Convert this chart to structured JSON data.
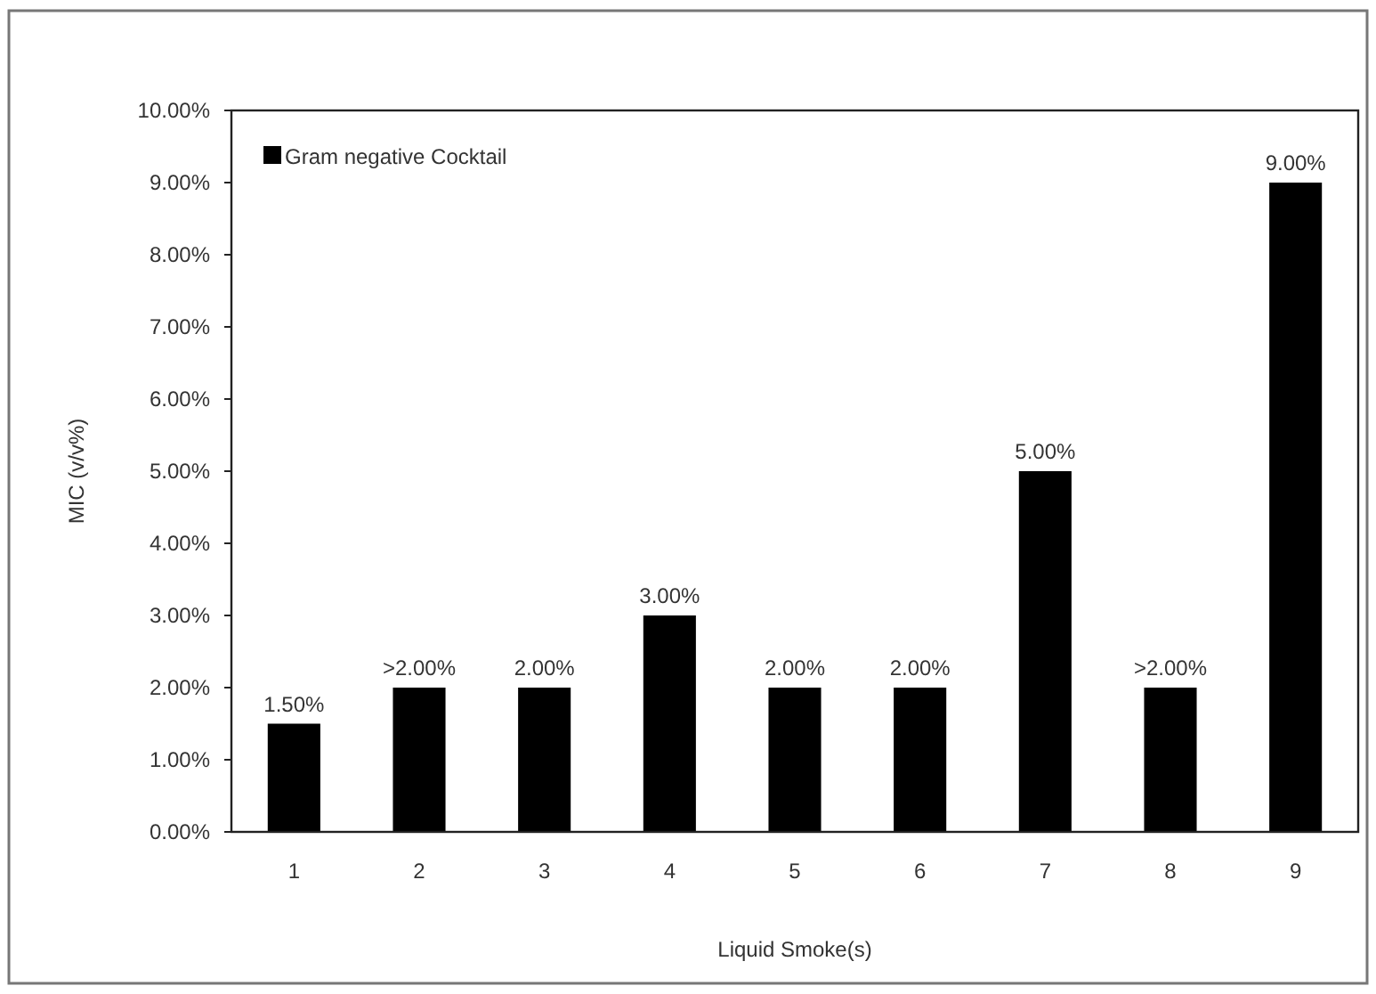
{
  "chart_data": {
    "type": "bar",
    "xlabel": "Liquid Smoke(s)",
    "ylabel": "MIC (v/v%)",
    "categories": [
      "1",
      "2",
      "3",
      "4",
      "5",
      "6",
      "7",
      "8",
      "9"
    ],
    "series": [
      {
        "name": "Gram negative Cocktail",
        "color": "#000000",
        "values": [
          1.5,
          2,
          2,
          3,
          2,
          2,
          5,
          2,
          9
        ],
        "value_labels": [
          "1.50%",
          ">2.00%",
          "2.00%",
          "3.00%",
          "2.00%",
          "2.00%",
          "5.00%",
          ">2.00%",
          "9.00%"
        ]
      }
    ],
    "ylim": [
      0,
      10
    ],
    "yticks": [
      {
        "value": 0,
        "label": "0.00%"
      },
      {
        "value": 1,
        "label": "1.00%"
      },
      {
        "value": 2,
        "label": "2.00%"
      },
      {
        "value": 3,
        "label": "3.00%"
      },
      {
        "value": 4,
        "label": "4.00%"
      },
      {
        "value": 5,
        "label": "5.00%"
      },
      {
        "value": 6,
        "label": "6.00%"
      },
      {
        "value": 7,
        "label": "7.00%"
      },
      {
        "value": 8,
        "label": "8.00%"
      },
      {
        "value": 9,
        "label": "9.00%"
      },
      {
        "value": 10,
        "label": "10.00%"
      }
    ],
    "legend": "top left",
    "grid": false
  }
}
